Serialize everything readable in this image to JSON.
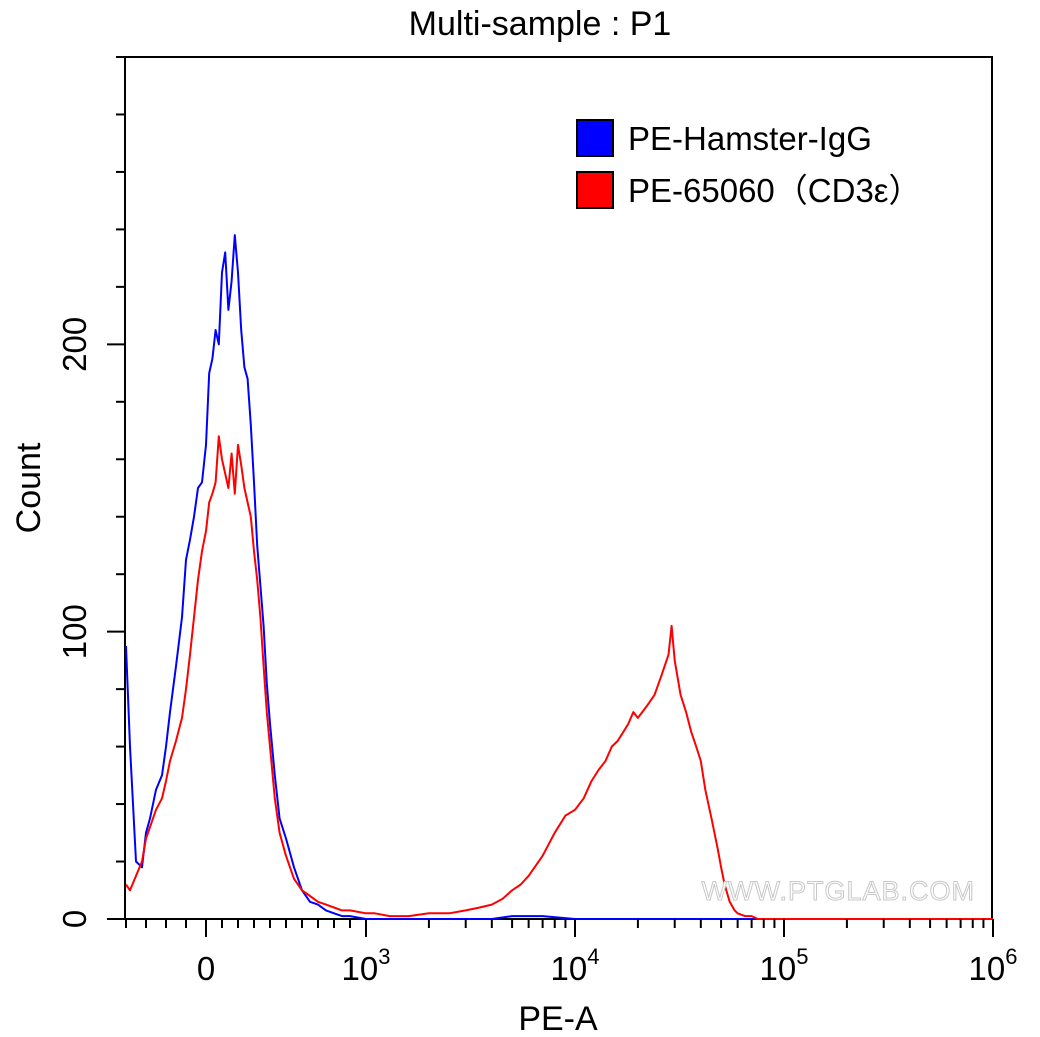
{
  "chart_data": {
    "type": "line",
    "title": "Multi-sample : P1",
    "xlabel": "PE-A",
    "ylabel": "Count",
    "x_scale": "biexponential",
    "ylim": [
      0,
      300
    ],
    "y_major_ticks": [
      0,
      100,
      200
    ],
    "y_minor_step": 20,
    "x_tick_labels": [
      {
        "value": 0,
        "base": "0",
        "exp": ""
      },
      {
        "value": 1000,
        "base": "10",
        "exp": "3"
      },
      {
        "value": 10000,
        "base": "10",
        "exp": "4"
      },
      {
        "value": 100000,
        "base": "10",
        "exp": "5"
      },
      {
        "value": 1000000,
        "base": "10",
        "exp": "6"
      }
    ],
    "legend_position": "top-right",
    "watermark": "WWW.PTGLAB.COM",
    "series": [
      {
        "name": "PE-Hamster-IgG",
        "color": "#0000ff",
        "x": [
          -400,
          -380,
          -350,
          -320,
          -300,
          -280,
          -250,
          -220,
          -200,
          -180,
          -150,
          -120,
          -100,
          -80,
          -60,
          -40,
          -20,
          0,
          20,
          40,
          60,
          80,
          100,
          120,
          140,
          160,
          180,
          200,
          220,
          240,
          260,
          280,
          300,
          320,
          340,
          360,
          380,
          400,
          430,
          460,
          500,
          550,
          600,
          650,
          700,
          750,
          800,
          850,
          900,
          1000,
          1100,
          1300,
          1600,
          2000,
          2500,
          3000,
          4000,
          5000,
          7000,
          10000,
          20000,
          50000,
          100000,
          1000000
        ],
        "y": [
          95,
          60,
          20,
          18,
          30,
          35,
          45,
          50,
          60,
          72,
          88,
          105,
          125,
          132,
          140,
          150,
          152,
          165,
          190,
          195,
          205,
          200,
          225,
          232,
          212,
          222,
          238,
          225,
          205,
          192,
          188,
          172,
          152,
          130,
          116,
          102,
          82,
          68,
          50,
          35,
          28,
          18,
          10,
          6,
          5,
          3,
          2,
          1,
          1,
          0,
          0,
          0,
          0,
          0,
          0,
          0,
          0,
          1,
          1,
          0,
          0,
          0,
          0,
          0
        ]
      },
      {
        "name": "PE-65060（CD3ε）",
        "color": "#ff0000",
        "x": [
          -400,
          -380,
          -350,
          -320,
          -300,
          -280,
          -250,
          -220,
          -200,
          -180,
          -150,
          -120,
          -100,
          -80,
          -60,
          -40,
          -20,
          0,
          20,
          40,
          60,
          80,
          100,
          120,
          140,
          160,
          180,
          200,
          220,
          240,
          260,
          280,
          300,
          320,
          340,
          360,
          380,
          400,
          430,
          460,
          500,
          550,
          600,
          650,
          700,
          750,
          800,
          850,
          900,
          1000,
          1100,
          1300,
          1600,
          2000,
          2500,
          3000,
          3500,
          4000,
          4500,
          5000,
          5500,
          6000,
          7000,
          8000,
          9000,
          10000,
          11000,
          12000,
          13000,
          14000,
          15000,
          16000,
          17000,
          18000,
          19000,
          20000,
          22000,
          24000,
          26000,
          28000,
          29000,
          30000,
          32000,
          34000,
          36000,
          38000,
          40000,
          42000,
          45000,
          48000,
          50000,
          52000,
          55000,
          58000,
          60000,
          65000,
          70000,
          75000,
          80000,
          90000,
          100000,
          200000,
          400000,
          1000000
        ],
        "y": [
          12,
          10,
          15,
          20,
          28,
          32,
          38,
          42,
          48,
          55,
          62,
          70,
          80,
          92,
          105,
          118,
          128,
          135,
          145,
          148,
          152,
          168,
          160,
          155,
          150,
          162,
          148,
          165,
          158,
          150,
          145,
          140,
          128,
          118,
          105,
          88,
          72,
          60,
          42,
          30,
          22,
          14,
          10,
          8,
          6,
          5,
          4,
          3,
          3,
          2,
          2,
          1,
          1,
          2,
          2,
          3,
          4,
          5,
          7,
          10,
          12,
          15,
          22,
          30,
          36,
          38,
          42,
          48,
          52,
          55,
          60,
          62,
          65,
          68,
          72,
          70,
          74,
          78,
          85,
          92,
          102,
          90,
          78,
          72,
          65,
          60,
          55,
          45,
          35,
          25,
          18,
          12,
          6,
          3,
          2,
          1,
          1,
          0,
          0,
          0,
          0,
          0,
          0,
          0
        ]
      }
    ]
  }
}
